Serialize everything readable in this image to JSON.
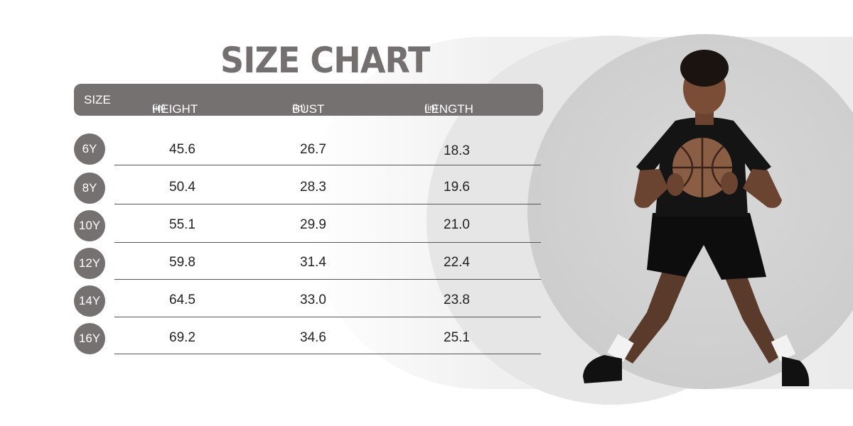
{
  "title": "SIZE CHART",
  "header": {
    "size": "SIZE",
    "height": "HEIGHT",
    "bust": "BUST",
    "length": "LENGTH",
    "unit": "(in)"
  },
  "rows": [
    {
      "size": "6Y",
      "height": "45.6",
      "bust": "26.7",
      "length": "18.3"
    },
    {
      "size": "8Y",
      "height": "50.4",
      "bust": "28.3",
      "length": "19.6"
    },
    {
      "size": "10Y",
      "height": "55.1",
      "bust": "29.9",
      "length": "21.0"
    },
    {
      "size": "12Y",
      "height": "59.8",
      "bust": "31.4",
      "length": "22.4"
    },
    {
      "size": "14Y",
      "height": "64.5",
      "bust": "33.0",
      "length": "23.8"
    },
    {
      "size": "16Y",
      "height": "69.2",
      "bust": "34.6",
      "length": "25.1"
    }
  ],
  "colors": {
    "accent": "#757171",
    "background": "#ffffff",
    "circle": "#d0d0d0"
  }
}
